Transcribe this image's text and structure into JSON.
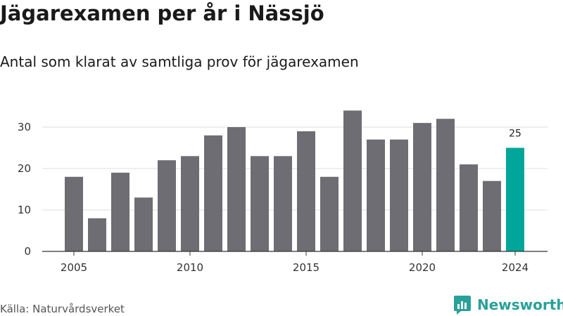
{
  "title": "Jägarexamen per år i Nässjö",
  "subtitle": "Antal som klarat av samtliga prov för jägarexamen",
  "source": "Källa: Naturvårdsverket",
  "brand": {
    "name": "Newsworthy",
    "icon": "newsworthy-logo-icon",
    "color": "#2aa198"
  },
  "chart_data": {
    "type": "bar",
    "x": [
      2005,
      2006,
      2007,
      2008,
      2009,
      2010,
      2011,
      2012,
      2013,
      2014,
      2015,
      2016,
      2017,
      2018,
      2019,
      2020,
      2021,
      2022,
      2023,
      2024
    ],
    "values": [
      18,
      8,
      19,
      13,
      22,
      23,
      28,
      30,
      23,
      23,
      29,
      18,
      34,
      27,
      27,
      31,
      32,
      21,
      17,
      25
    ],
    "x_tick_labels": [
      "2005",
      "2010",
      "2015",
      "2020",
      "2024"
    ],
    "y_ticks": [
      0,
      10,
      20,
      30
    ],
    "ylim": [
      0,
      35
    ],
    "grid": "horizontal",
    "bar_color": "#6e6d73",
    "highlight_color": "#00a69a",
    "highlight_x": 2024,
    "data_labels": [
      {
        "x": 2024,
        "text": "25"
      }
    ]
  }
}
